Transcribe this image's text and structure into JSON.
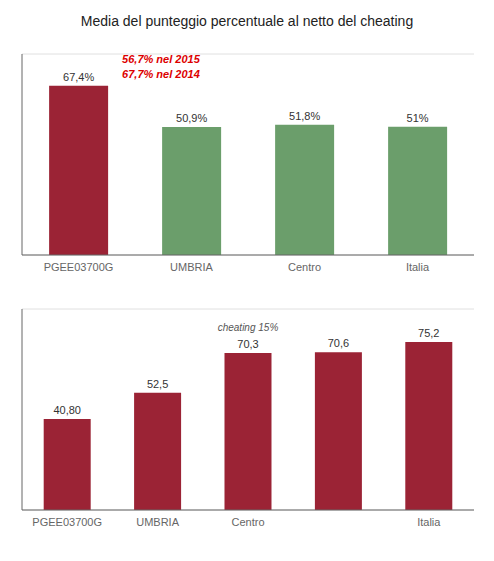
{
  "chart_data": [
    {
      "type": "bar",
      "title": "Media del punteggio percentuale al netto del cheating",
      "categories": [
        "PGEE03700G",
        "UMBRIA",
        "Centro",
        "Italia"
      ],
      "values": [
        67.4,
        50.9,
        51.8,
        51.0
      ],
      "value_labels": [
        "67,4%",
        "50,9%",
        "51,8%",
        "51%"
      ],
      "colors": [
        "#9b2335",
        "#6b9e6b",
        "#6b9e6b",
        "#6b9e6b"
      ],
      "ylim": [
        0,
        80
      ],
      "yticks": [
        0,
        20,
        40,
        60,
        80
      ],
      "grid": true,
      "data_labels": true,
      "tick_labels": "x",
      "annotations": [
        {
          "text": "56,7% nel 2015",
          "x": "PGEE03700G",
          "color": "#dd0000"
        },
        {
          "text": "67,7% nel 2014",
          "x": "PGEE03700G",
          "color": "#dd0000"
        }
      ]
    },
    {
      "type": "bar",
      "categories": [
        "PGEE03700G",
        "UMBRIA",
        "Centro",
        null,
        "Italia"
      ],
      "values": [
        40.8,
        52.5,
        70.3,
        70.6,
        75.2
      ],
      "value_labels": [
        "40,80",
        "52,5",
        "70,3",
        "70,6",
        "75,2"
      ],
      "color": "#9b2335",
      "ylim": [
        0,
        90
      ],
      "yticks": [
        0,
        20,
        40,
        60,
        80
      ],
      "grid": true,
      "data_labels": true,
      "tick_labels": "x",
      "annotations": [
        {
          "text": "cheating 15%",
          "x": "Centro",
          "color": "#555555"
        }
      ]
    }
  ]
}
